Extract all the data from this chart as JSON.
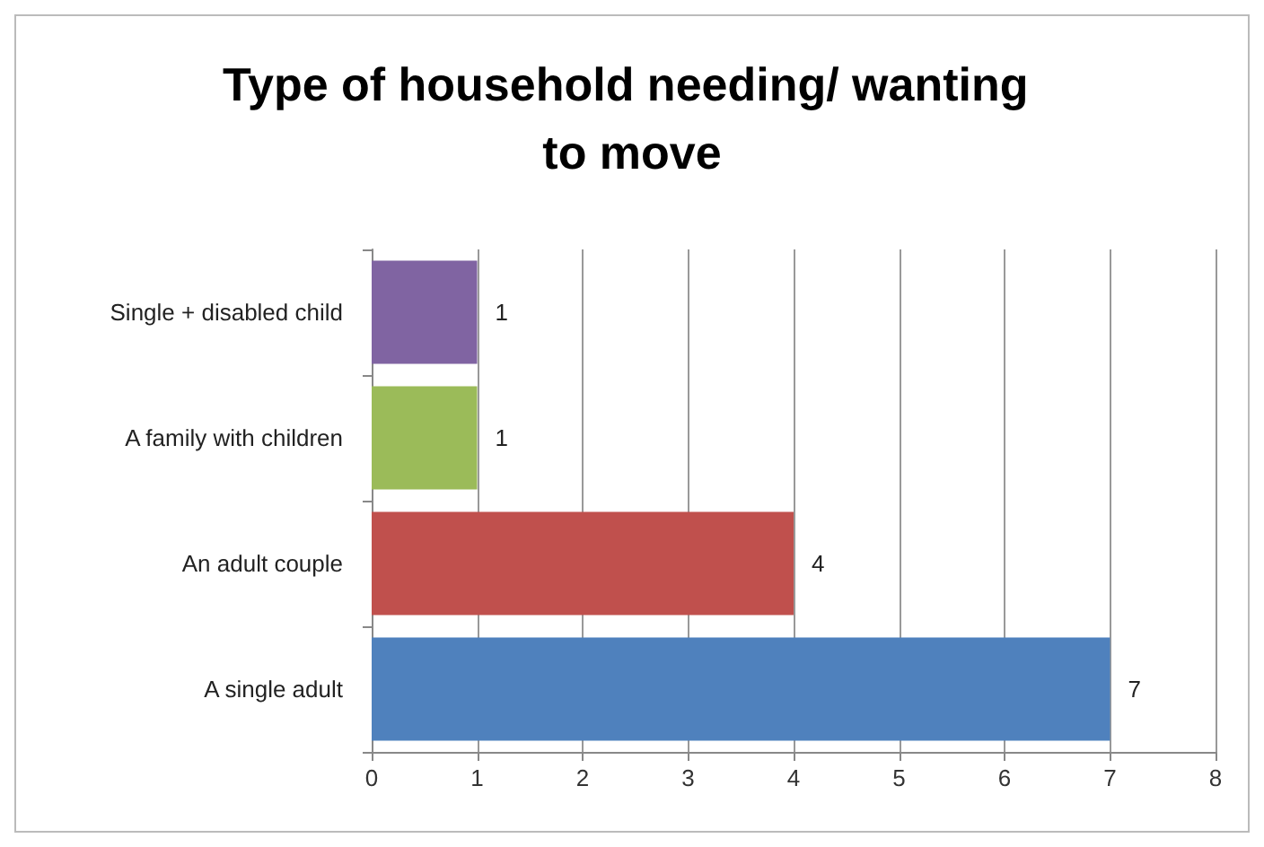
{
  "chart_data": {
    "type": "bar",
    "orientation": "horizontal",
    "title": "Type of household needing/ wanting to move",
    "categories": [
      "Single + disabled child",
      "A family with children",
      "An adult couple",
      "A single adult"
    ],
    "values": [
      1,
      1,
      4,
      7
    ],
    "colors": [
      "#8064a2",
      "#9bbb59",
      "#c0504d",
      "#4f81bd"
    ],
    "xlim": [
      0,
      8
    ],
    "xticks": [
      0,
      1,
      2,
      3,
      4,
      5,
      6,
      7,
      8
    ],
    "grid": "x",
    "data_labels": true
  }
}
